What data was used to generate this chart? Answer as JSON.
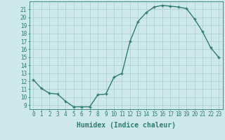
{
  "x": [
    0,
    1,
    2,
    3,
    4,
    5,
    6,
    7,
    8,
    9,
    10,
    11,
    12,
    13,
    14,
    15,
    16,
    17,
    18,
    19,
    20,
    21,
    22,
    23
  ],
  "y": [
    12.2,
    11.1,
    10.5,
    10.4,
    9.5,
    8.8,
    8.8,
    8.8,
    10.3,
    10.4,
    12.5,
    13.0,
    17.0,
    19.5,
    20.6,
    21.3,
    21.5,
    21.4,
    21.3,
    21.1,
    19.8,
    18.2,
    16.2,
    15.0
  ],
  "xlim": [
    -0.5,
    23.5
  ],
  "ylim": [
    8.5,
    22.0
  ],
  "yticks": [
    9,
    10,
    11,
    12,
    13,
    14,
    15,
    16,
    17,
    18,
    19,
    20,
    21
  ],
  "xticks": [
    0,
    1,
    2,
    3,
    4,
    5,
    6,
    7,
    8,
    9,
    10,
    11,
    12,
    13,
    14,
    15,
    16,
    17,
    18,
    19,
    20,
    21,
    22,
    23
  ],
  "xlabel": "Humidex (Indice chaleur)",
  "line_color": "#2e7d6e",
  "marker": "+",
  "marker_size": 3.5,
  "background_color": "#cce8e8",
  "grid_color": "#aecece",
  "axis_fontsize": 5.5,
  "label_fontsize": 7.0
}
